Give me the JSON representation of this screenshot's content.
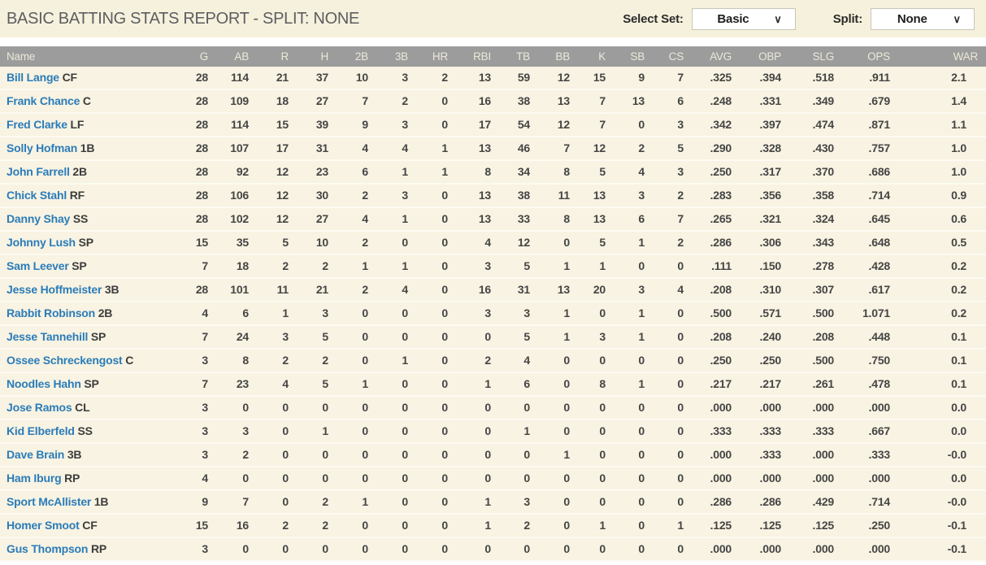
{
  "colors": {
    "title_bar_bg": "#f6f1dc",
    "title_text": "#5d5d62",
    "table_header_bg": "#9c9c9c",
    "table_header_text": "#ece8da",
    "row_bg": "#f8f3e2",
    "row_separator": "#fdfbf2",
    "player_link_blue": "#2b7cb9",
    "stat_text": "#454545"
  },
  "header": {
    "title": "BASIC BATTING STATS REPORT - SPLIT: NONE",
    "select_set": {
      "label": "Select Set:",
      "value": "Basic"
    },
    "split": {
      "label": "Split:",
      "value": "None"
    },
    "chevron": "∨"
  },
  "table": {
    "columns": [
      "Name",
      "G",
      "AB",
      "R",
      "H",
      "2B",
      "3B",
      "HR",
      "RBI",
      "TB",
      "BB",
      "K",
      "SB",
      "CS",
      "AVG",
      "OBP",
      "SLG",
      "OPS",
      "WAR"
    ],
    "rows": [
      {
        "name": "Bill Lange",
        "pos": "CF",
        "stats": [
          "28",
          "114",
          "21",
          "37",
          "10",
          "3",
          "2",
          "13",
          "59",
          "12",
          "15",
          "9",
          "7",
          ".325",
          ".394",
          ".518",
          ".911",
          "2.1"
        ]
      },
      {
        "name": "Frank Chance",
        "pos": "C",
        "stats": [
          "28",
          "109",
          "18",
          "27",
          "7",
          "2",
          "0",
          "16",
          "38",
          "13",
          "7",
          "13",
          "6",
          ".248",
          ".331",
          ".349",
          ".679",
          "1.4"
        ]
      },
      {
        "name": "Fred Clarke",
        "pos": "LF",
        "stats": [
          "28",
          "114",
          "15",
          "39",
          "9",
          "3",
          "0",
          "17",
          "54",
          "12",
          "7",
          "0",
          "3",
          ".342",
          ".397",
          ".474",
          ".871",
          "1.1"
        ]
      },
      {
        "name": "Solly Hofman",
        "pos": "1B",
        "stats": [
          "28",
          "107",
          "17",
          "31",
          "4",
          "4",
          "1",
          "13",
          "46",
          "7",
          "12",
          "2",
          "5",
          ".290",
          ".328",
          ".430",
          ".757",
          "1.0"
        ]
      },
      {
        "name": "John Farrell",
        "pos": "2B",
        "stats": [
          "28",
          "92",
          "12",
          "23",
          "6",
          "1",
          "1",
          "8",
          "34",
          "8",
          "5",
          "4",
          "3",
          ".250",
          ".317",
          ".370",
          ".686",
          "1.0"
        ]
      },
      {
        "name": "Chick Stahl",
        "pos": "RF",
        "stats": [
          "28",
          "106",
          "12",
          "30",
          "2",
          "3",
          "0",
          "13",
          "38",
          "11",
          "13",
          "3",
          "2",
          ".283",
          ".356",
          ".358",
          ".714",
          "0.9"
        ]
      },
      {
        "name": "Danny Shay",
        "pos": "SS",
        "stats": [
          "28",
          "102",
          "12",
          "27",
          "4",
          "1",
          "0",
          "13",
          "33",
          "8",
          "13",
          "6",
          "7",
          ".265",
          ".321",
          ".324",
          ".645",
          "0.6"
        ]
      },
      {
        "name": "Johnny Lush",
        "pos": "SP",
        "stats": [
          "15",
          "35",
          "5",
          "10",
          "2",
          "0",
          "0",
          "4",
          "12",
          "0",
          "5",
          "1",
          "2",
          ".286",
          ".306",
          ".343",
          ".648",
          "0.5"
        ]
      },
      {
        "name": "Sam Leever",
        "pos": "SP",
        "stats": [
          "7",
          "18",
          "2",
          "2",
          "1",
          "1",
          "0",
          "3",
          "5",
          "1",
          "1",
          "0",
          "0",
          ".111",
          ".150",
          ".278",
          ".428",
          "0.2"
        ]
      },
      {
        "name": "Jesse Hoffmeister",
        "pos": "3B",
        "stats": [
          "28",
          "101",
          "11",
          "21",
          "2",
          "4",
          "0",
          "16",
          "31",
          "13",
          "20",
          "3",
          "4",
          ".208",
          ".310",
          ".307",
          ".617",
          "0.2"
        ]
      },
      {
        "name": "Rabbit Robinson",
        "pos": "2B",
        "stats": [
          "4",
          "6",
          "1",
          "3",
          "0",
          "0",
          "0",
          "3",
          "3",
          "1",
          "0",
          "1",
          "0",
          ".500",
          ".571",
          ".500",
          "1.071",
          "0.2"
        ]
      },
      {
        "name": "Jesse Tannehill",
        "pos": "SP",
        "stats": [
          "7",
          "24",
          "3",
          "5",
          "0",
          "0",
          "0",
          "0",
          "5",
          "1",
          "3",
          "1",
          "0",
          ".208",
          ".240",
          ".208",
          ".448",
          "0.1"
        ]
      },
      {
        "name": "Ossee Schreckengost",
        "pos": "C",
        "stats": [
          "3",
          "8",
          "2",
          "2",
          "0",
          "1",
          "0",
          "2",
          "4",
          "0",
          "0",
          "0",
          "0",
          ".250",
          ".250",
          ".500",
          ".750",
          "0.1"
        ]
      },
      {
        "name": "Noodles Hahn",
        "pos": "SP",
        "stats": [
          "7",
          "23",
          "4",
          "5",
          "1",
          "0",
          "0",
          "1",
          "6",
          "0",
          "8",
          "1",
          "0",
          ".217",
          ".217",
          ".261",
          ".478",
          "0.1"
        ]
      },
      {
        "name": "Jose Ramos",
        "pos": "CL",
        "stats": [
          "3",
          "0",
          "0",
          "0",
          "0",
          "0",
          "0",
          "0",
          "0",
          "0",
          "0",
          "0",
          "0",
          ".000",
          ".000",
          ".000",
          ".000",
          "0.0"
        ]
      },
      {
        "name": "Kid Elberfeld",
        "pos": "SS",
        "stats": [
          "3",
          "3",
          "0",
          "1",
          "0",
          "0",
          "0",
          "0",
          "1",
          "0",
          "0",
          "0",
          "0",
          ".333",
          ".333",
          ".333",
          ".667",
          "0.0"
        ]
      },
      {
        "name": "Dave Brain",
        "pos": "3B",
        "stats": [
          "3",
          "2",
          "0",
          "0",
          "0",
          "0",
          "0",
          "0",
          "0",
          "1",
          "0",
          "0",
          "0",
          ".000",
          ".333",
          ".000",
          ".333",
          "-0.0"
        ]
      },
      {
        "name": "Ham Iburg",
        "pos": "RP",
        "stats": [
          "4",
          "0",
          "0",
          "0",
          "0",
          "0",
          "0",
          "0",
          "0",
          "0",
          "0",
          "0",
          "0",
          ".000",
          ".000",
          ".000",
          ".000",
          "0.0"
        ]
      },
      {
        "name": "Sport McAllister",
        "pos": "1B",
        "stats": [
          "9",
          "7",
          "0",
          "2",
          "1",
          "0",
          "0",
          "1",
          "3",
          "0",
          "0",
          "0",
          "0",
          ".286",
          ".286",
          ".429",
          ".714",
          "-0.0"
        ]
      },
      {
        "name": "Homer Smoot",
        "pos": "CF",
        "stats": [
          "15",
          "16",
          "2",
          "2",
          "0",
          "0",
          "0",
          "1",
          "2",
          "0",
          "1",
          "0",
          "1",
          ".125",
          ".125",
          ".125",
          ".250",
          "-0.1"
        ]
      },
      {
        "name": "Gus Thompson",
        "pos": "RP",
        "stats": [
          "3",
          "0",
          "0",
          "0",
          "0",
          "0",
          "0",
          "0",
          "0",
          "0",
          "0",
          "0",
          "0",
          ".000",
          ".000",
          ".000",
          ".000",
          "-0.1"
        ]
      }
    ]
  }
}
